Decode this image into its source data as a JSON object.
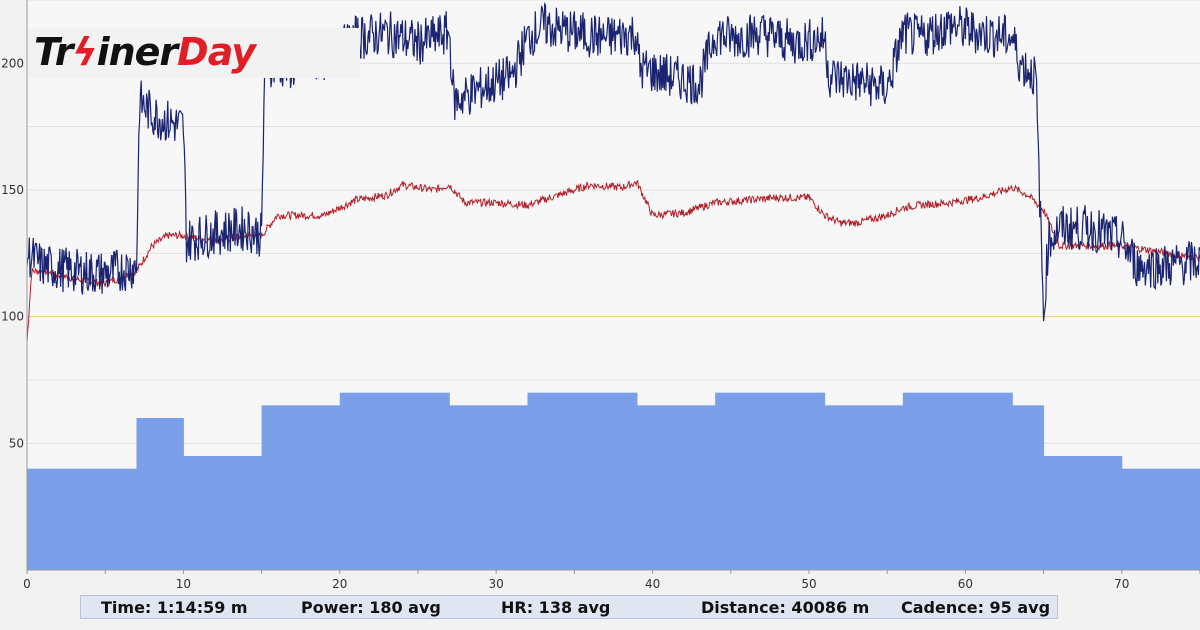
{
  "logo": {
    "part1": "Tr",
    "bolt": "ϟ",
    "part2": "iner",
    "part3": "Day",
    "brand_red": "#e01e26"
  },
  "stats": {
    "time": "Time: 1:14:59 m",
    "power": "Power: 180 avg",
    "hr": "HR: 138 avg",
    "distance": "Distance: 40086 m",
    "cadence": "Cadence: 95 avg"
  },
  "chart_data": {
    "type": "area",
    "xlim": [
      0,
      75
    ],
    "ylim": [
      0,
      225
    ],
    "x_ticks": [
      0,
      10,
      20,
      30,
      40,
      50,
      60,
      70
    ],
    "y_ticks": [
      50,
      100,
      150,
      200
    ],
    "reference_line": {
      "y": 100,
      "color": "#f0d080"
    },
    "grid": true,
    "colors": {
      "target": "#7b9fe8",
      "power": "#1a2470",
      "heart_rate": "#b0202a"
    },
    "target_power_steps": [
      {
        "start": 0,
        "end": 7,
        "value": 40
      },
      {
        "start": 7,
        "end": 10,
        "value": 60
      },
      {
        "start": 10,
        "end": 15,
        "value": 45
      },
      {
        "start": 15,
        "end": 20,
        "value": 65
      },
      {
        "start": 20,
        "end": 27,
        "value": 70
      },
      {
        "start": 27,
        "end": 32,
        "value": 65
      },
      {
        "start": 32,
        "end": 39,
        "value": 70
      },
      {
        "start": 39,
        "end": 44,
        "value": 65
      },
      {
        "start": 44,
        "end": 51,
        "value": 70
      },
      {
        "start": 51,
        "end": 56,
        "value": 65
      },
      {
        "start": 56,
        "end": 63,
        "value": 70
      },
      {
        "start": 63,
        "end": 65,
        "value": 65
      },
      {
        "start": 65,
        "end": 70,
        "value": 45
      },
      {
        "start": 70,
        "end": 75,
        "value": 40
      }
    ],
    "power_series": {
      "x": [
        0,
        1,
        3,
        5,
        7,
        7.2,
        8,
        9,
        10,
        10.2,
        12,
        14,
        15,
        15.2,
        17,
        19,
        20,
        21,
        23,
        25,
        27,
        27.3,
        29,
        31,
        32,
        33,
        35,
        37,
        38.9,
        39.2,
        41,
        43,
        44,
        45,
        47,
        49,
        51,
        51.3,
        53,
        55,
        56,
        57,
        59,
        61,
        63,
        63.5,
        64.5,
        65,
        65.3,
        66,
        68,
        70,
        71,
        73,
        75
      ],
      "y": [
        125,
        120,
        118,
        117,
        120,
        185,
        180,
        177,
        175,
        130,
        133,
        135,
        132,
        200,
        198,
        202,
        205,
        210,
        212,
        208,
        212,
        185,
        190,
        195,
        210,
        215,
        212,
        210,
        212,
        198,
        195,
        192,
        212,
        210,
        212,
        208,
        210,
        195,
        193,
        190,
        212,
        210,
        215,
        212,
        210,
        200,
        195,
        100,
        130,
        135,
        135,
        130,
        120,
        120,
        122
      ]
    },
    "heart_rate_series": {
      "x": [
        0,
        0.3,
        1,
        3,
        5,
        7,
        8,
        9,
        10,
        12,
        14,
        15,
        16,
        17,
        19,
        20,
        21,
        23,
        24,
        26,
        27,
        28,
        30,
        32,
        34,
        36,
        38,
        39,
        40,
        42,
        44,
        46,
        48,
        50,
        51,
        52,
        53,
        55,
        56,
        57,
        59,
        61,
        63,
        64,
        65,
        66,
        68,
        70,
        72,
        75
      ],
      "y": [
        90,
        118,
        118,
        115,
        113,
        118,
        128,
        132,
        132,
        130,
        132,
        132,
        140,
        140,
        140,
        143,
        146,
        148,
        152,
        150,
        152,
        145,
        145,
        144,
        148,
        152,
        151,
        153,
        140,
        141,
        145,
        146,
        147,
        147,
        140,
        137,
        137,
        140,
        143,
        144,
        145,
        147,
        151,
        148,
        142,
        128,
        128,
        128,
        126,
        123
      ]
    }
  }
}
